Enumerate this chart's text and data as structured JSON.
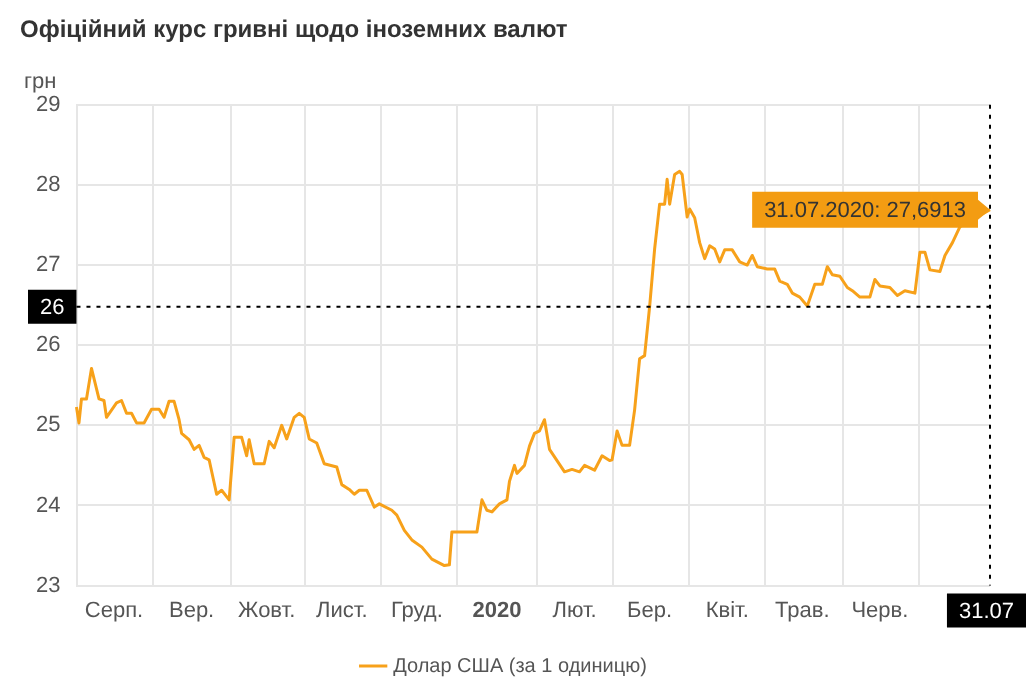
{
  "chart_data": {
    "type": "line",
    "title": "Офіційний курс гривні щодо іноземних валют",
    "ylabel": "грн",
    "categories": [
      null,
      null,
      null,
      null,
      null,
      null,
      null,
      null,
      null,
      null,
      null,
      null,
      null,
      null,
      null,
      "Серп.",
      null,
      null,
      null,
      null,
      null,
      null,
      null,
      null,
      null,
      null,
      null,
      null,
      null,
      null,
      null,
      null,
      null,
      null,
      null,
      null,
      null,
      null,
      null,
      null,
      null,
      null,
      null,
      null,
      null,
      null,
      "Вер.",
      null,
      null,
      null,
      null,
      null,
      null,
      null,
      null,
      null,
      null,
      null,
      null,
      null,
      null,
      null,
      null,
      null,
      null,
      null,
      null,
      null,
      null,
      null,
      null,
      null,
      null,
      null,
      null,
      null,
      "Жовт.",
      null,
      null,
      null,
      null,
      null,
      null,
      null,
      null,
      null,
      null,
      null,
      null,
      null,
      null,
      null,
      null,
      null,
      null,
      null,
      null,
      null,
      null,
      null,
      null,
      null,
      null,
      null,
      null,
      null,
      "Лист.",
      null,
      null,
      null,
      null,
      null,
      null,
      null,
      null,
      null,
      null,
      null,
      null,
      null,
      null,
      null,
      null,
      null,
      null,
      null,
      null,
      null,
      null,
      null,
      null,
      null,
      null,
      null,
      null,
      null,
      "Груд.",
      null,
      null,
      null,
      null,
      null,
      null,
      null,
      null,
      null,
      null,
      null,
      null,
      null,
      null,
      null,
      null,
      null,
      null,
      null,
      null,
      null,
      null,
      null,
      null,
      null,
      null,
      null,
      null,
      null,
      null,
      null,
      "2020",
      null,
      null,
      null,
      null,
      null,
      null,
      null,
      null,
      null,
      null,
      null,
      null,
      null,
      null,
      null,
      null,
      null,
      null,
      null,
      null,
      null,
      null,
      null,
      null,
      null,
      null,
      null,
      null,
      null,
      null,
      "Лют.",
      null,
      null,
      null,
      null,
      null,
      null,
      null,
      null,
      null,
      null,
      null,
      null,
      null,
      null,
      null,
      null,
      null,
      null,
      null,
      null,
      null,
      null,
      null,
      null,
      null,
      null,
      null,
      null,
      null,
      "Бер.",
      null,
      null,
      null,
      null,
      null,
      null,
      null,
      null,
      null,
      null,
      null,
      null,
      null,
      null,
      null,
      null,
      null,
      null,
      null,
      null,
      null,
      null,
      null,
      null,
      null,
      null,
      null,
      null,
      null,
      null,
      "Квіт.",
      null,
      null,
      null,
      null,
      null,
      null,
      null,
      null,
      null,
      null,
      null,
      null,
      null,
      null,
      null,
      null,
      null,
      null,
      null,
      null,
      null,
      null,
      null,
      null,
      null,
      null,
      null,
      null,
      null,
      "Трав.",
      null,
      null,
      null,
      null,
      null,
      null,
      null,
      null,
      null,
      null,
      null,
      null,
      null,
      null,
      null,
      null,
      null,
      null,
      null,
      null,
      null,
      null,
      null,
      null,
      null,
      null,
      null,
      null,
      null,
      null,
      "Черв.",
      null,
      null,
      null,
      null,
      null,
      null,
      null,
      null,
      null,
      null,
      null,
      null,
      null,
      null,
      null,
      null,
      null,
      null,
      null,
      null,
      null,
      null,
      null,
      null,
      null,
      null,
      null,
      null,
      null,
      null,
      null,
      null,
      null,
      null,
      null,
      null,
      null,
      null,
      null,
      null,
      null,
      null,
      null,
      "31.07"
    ],
    "ylim": [
      23,
      29
    ],
    "yticks": [
      23,
      24,
      25,
      26,
      27,
      28,
      29
    ],
    "grid": true,
    "legend": "bottom",
    "marker": "none",
    "line_style": "solid",
    "series": [
      {
        "name": "Долар США (за 1 одиницю)",
        "color": "#f7a11a",
        "values": [
          25.23,
          25.03,
          25.33,
          null,
          25.33,
          null,
          25.71,
          null,
          null,
          25.33,
          null,
          25.31,
          25.1,
          null,
          null,
          null,
          25.28,
          null,
          25.31,
          null,
          25.15,
          null,
          25.15,
          null,
          25.03,
          null,
          null,
          25.03,
          null,
          null,
          25.2,
          null,
          null,
          25.2,
          null,
          25.1,
          null,
          25.3,
          null,
          25.3,
          null,
          25.07,
          24.9,
          null,
          null,
          24.82,
          null,
          24.7,
          null,
          24.75,
          null,
          24.6,
          null,
          24.57,
          null,
          null,
          24.14,
          null,
          24.19,
          null,
          null,
          24.07,
          null,
          24.85,
          null,
          null,
          24.85,
          null,
          24.62,
          24.82,
          null,
          24.52,
          null,
          null,
          null,
          24.52,
          null,
          24.8,
          null,
          24.72,
          null,
          null,
          25.0,
          null,
          24.83,
          null,
          null,
          25.1,
          null,
          25.15,
          null,
          25.1,
          null,
          24.83,
          null,
          null,
          24.78,
          null,
          null,
          24.52,
          null,
          null,
          null,
          null,
          24.48,
          null,
          24.26,
          null,
          null,
          24.2,
          null,
          24.14,
          null,
          24.19,
          null,
          null,
          24.19,
          null,
          null,
          23.98,
          null,
          24.02,
          null,
          null,
          null,
          null,
          23.94,
          null,
          23.88,
          null,
          null,
          23.69,
          null,
          null,
          23.57,
          null,
          null,
          null,
          23.48,
          null,
          null,
          null,
          23.33,
          null,
          null,
          null,
          null,
          23.25,
          null,
          23.26,
          23.67,
          null,
          null,
          null,
          null,
          23.67,
          null,
          null,
          null,
          null,
          23.67,
          null,
          24.07,
          null,
          23.94,
          null,
          23.92,
          null,
          null,
          24.02,
          null,
          null,
          24.07,
          24.3,
          null,
          24.5,
          24.4,
          null,
          null,
          24.5,
          null,
          24.74,
          null,
          24.9,
          null,
          24.93,
          null,
          25.07,
          null,
          24.7,
          null,
          null,
          24.56,
          null,
          null,
          24.42,
          null,
          null,
          24.45,
          null,
          null,
          24.42,
          null,
          24.5,
          null,
          null,
          null,
          24.44,
          null,
          null,
          24.62,
          null,
          null,
          24.56,
          24.57,
          null,
          24.93,
          null,
          24.75,
          null,
          null,
          24.75,
          null,
          25.19,
          null,
          25.83,
          null,
          25.87,
          null,
          26.48,
          null,
          27.2,
          null,
          27.76,
          null,
          27.76,
          28.07,
          27.76,
          null,
          28.13,
          null,
          28.17,
          28.13,
          null,
          27.6,
          27.7,
          null,
          27.59,
          null,
          27.28,
          null,
          27.08,
          null,
          27.24,
          null,
          27.2,
          null,
          27.04,
          null,
          27.19,
          null,
          null,
          27.19,
          null,
          null,
          27.04,
          null,
          null,
          27.0,
          null,
          27.12,
          null,
          26.98,
          null,
          null,
          null,
          26.95,
          null,
          null,
          26.95,
          null,
          26.8,
          null,
          null,
          26.76,
          null,
          26.65,
          null,
          null,
          26.6,
          null,
          null,
          26.49,
          null,
          null,
          26.76,
          null,
          null,
          26.76,
          null,
          26.98,
          null,
          26.88,
          null,
          null,
          26.86,
          null,
          null,
          26.72,
          null,
          26.68,
          null,
          null,
          26.6,
          null,
          null,
          null,
          26.6,
          null,
          26.82,
          null,
          26.74,
          null,
          null,
          null,
          26.72,
          null,
          null,
          26.62,
          null,
          null,
          26.68,
          null,
          null,
          null,
          26.65,
          null,
          27.16,
          null,
          27.16,
          null,
          26.94,
          null,
          null,
          null,
          26.92,
          null,
          27.12,
          null,
          null,
          27.28,
          null,
          null,
          27.48,
          null,
          null,
          null,
          null,
          null,
          null,
          null,
          null,
          null,
          null,
          null,
          27.69
        ]
      }
    ],
    "ref_lines": [
      {
        "axis": "y",
        "value": 26.48,
        "label": "26",
        "line_style": "dotted",
        "color": "#000000"
      },
      {
        "axis": "x",
        "value": "31.07",
        "label": "31.07",
        "line_style": "dotted",
        "color": "#000000"
      }
    ],
    "annotations": [
      {
        "text": "31.07.2020: 27,6913",
        "x": "31.07",
        "y": 27.6913
      }
    ]
  }
}
